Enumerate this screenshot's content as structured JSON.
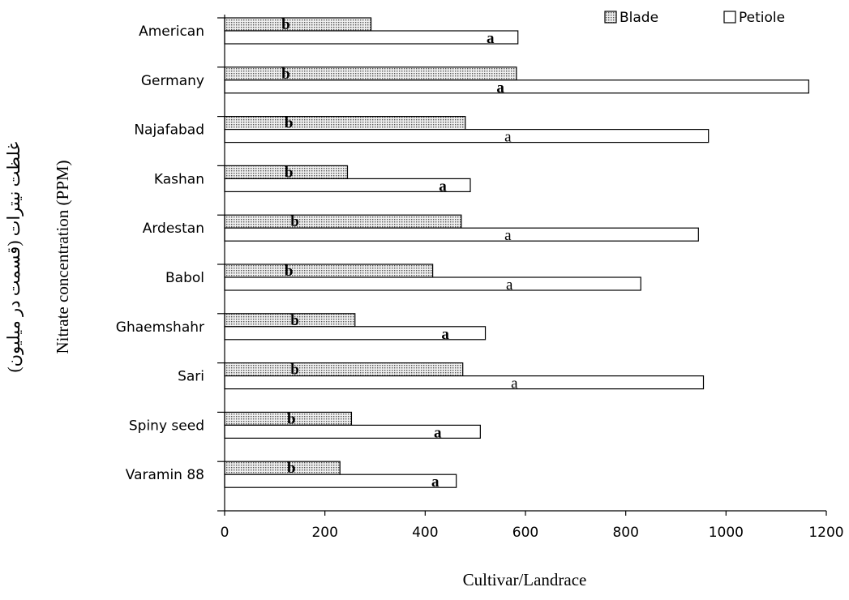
{
  "chart_data": {
    "type": "bar",
    "orientation": "horizontal",
    "categories": [
      "American",
      "Germany",
      "Najafabad",
      "Kashan",
      "Ardestan",
      "Babol",
      "Ghaemshahr",
      "Sari",
      "Spiny seed",
      "Varamin 88"
    ],
    "series": [
      {
        "name": "Blade",
        "values": [
          292,
          582,
          480,
          245,
          472,
          415,
          260,
          475,
          253,
          230
        ],
        "letters": [
          "b",
          "b",
          "b",
          "b",
          "b",
          "b",
          "b",
          "b",
          "b",
          "b"
        ],
        "letter_positions": [
          122,
          122,
          128,
          128,
          140,
          128,
          140,
          140,
          133,
          133
        ],
        "color": "#c8c8c8",
        "pattern": "dotted"
      },
      {
        "name": "Petiole",
        "values": [
          585,
          1165,
          965,
          490,
          945,
          830,
          520,
          955,
          510,
          462
        ],
        "letters": [
          "a",
          "a",
          "a",
          "a",
          "a",
          "a",
          "a",
          "a",
          "a",
          "a"
        ],
        "letter_positions": [
          530,
          550,
          565,
          435,
          565,
          568,
          440,
          578,
          425,
          420
        ],
        "color": "#ffffff",
        "pattern": "none"
      }
    ],
    "letters_bold": [
      true,
      true,
      false,
      true,
      false,
      false,
      true,
      false,
      true,
      true
    ],
    "xlim": [
      0,
      1200
    ],
    "xticks": [
      "0",
      "200",
      "400",
      "600",
      "800",
      "1000",
      "1200"
    ],
    "xlabel": "Cultivar/Landrace",
    "ylabel": "Nitrate concentration (PPM)",
    "ylabel_persian": "غلظت نیترات (قسمت در میلیون)",
    "legend_position": "top-right",
    "grid": false
  }
}
